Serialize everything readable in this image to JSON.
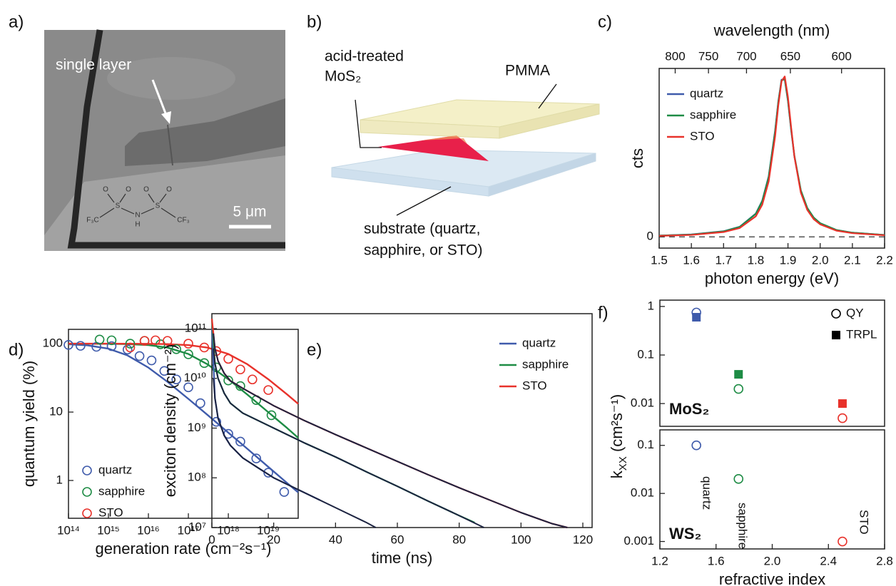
{
  "panel_labels": [
    "a)",
    "b)",
    "c)",
    "d)",
    "e)",
    "f)"
  ],
  "micrograph": {
    "annotation": "single layer",
    "scale_bar": "5 μm",
    "molecule_labels": [
      "O",
      "O",
      "O",
      "O",
      "S",
      "S",
      "N",
      "H",
      "F₃C",
      "CF₃"
    ]
  },
  "schematic": {
    "labels": [
      "acid-treated",
      "MoS₂",
      "PMMA",
      "substrate (quartz,",
      "sapphire, or STO)"
    ]
  },
  "chart_data": [
    {
      "type": "line",
      "x_label": "photon energy (eV)",
      "y_label": "cts",
      "x2_label": "wavelength (nm)",
      "xlim": [
        1.5,
        2.2
      ],
      "xticks": [
        1.5,
        1.6,
        1.7,
        1.8,
        1.9,
        {
          "value": 2,
          "label": "2.0"
        },
        2.1,
        2.2
      ],
      "x2ticks": [
        800,
        750,
        700,
        650,
        600
      ],
      "ylim": [
        -0.07,
        1.05
      ],
      "yticks": [
        0
      ],
      "zero_line": "dashed",
      "legend": "upper left",
      "x": [
        1.5,
        1.6,
        1.7,
        1.75,
        1.8,
        1.82,
        1.84,
        1.86,
        1.87,
        1.88,
        1.89,
        1.9,
        1.91,
        1.92,
        1.94,
        1.96,
        1.98,
        2.0,
        2.05,
        2.1,
        2.2
      ],
      "series": [
        {
          "name": "quartz",
          "color": "#3f5bab",
          "values": [
            0.008,
            0.015,
            0.035,
            0.063,
            0.145,
            0.225,
            0.377,
            0.662,
            0.845,
            0.98,
            0.98,
            0.845,
            0.662,
            0.5,
            0.288,
            0.179,
            0.119,
            0.085,
            0.043,
            0.026,
            0.012
          ]
        },
        {
          "name": "sapphire",
          "color": "#1e8c45",
          "values": [
            0.008,
            0.014,
            0.034,
            0.062,
            0.143,
            0.222,
            0.372,
            0.655,
            0.84,
            0.975,
            0.985,
            0.85,
            0.668,
            0.505,
            0.29,
            0.18,
            0.12,
            0.085,
            0.043,
            0.026,
            0.012
          ]
        },
        {
          "name": "STO",
          "color": "#e8322b",
          "values": [
            0.006,
            0.012,
            0.03,
            0.055,
            0.128,
            0.2,
            0.345,
            0.625,
            0.82,
            0.97,
            1.0,
            0.87,
            0.68,
            0.5,
            0.275,
            0.168,
            0.11,
            0.078,
            0.039,
            0.023,
            0.01
          ]
        }
      ]
    },
    {
      "type": "scatter",
      "x_label": "generation rate (cm⁻²s⁻¹)",
      "y_label": "quantum yield (%)",
      "xscale": "log",
      "yscale": "log",
      "xlim": [
        100000000000000.0,
        5.6e+19
      ],
      "ylim": [
        0.28,
        162
      ],
      "xticks": [
        {
          "value": 100000000000000.0,
          "label": "10¹⁴"
        },
        {
          "value": 1000000000000000.0,
          "label": "10¹⁵"
        },
        {
          "value": 1e+16,
          "label": "10¹⁶"
        },
        {
          "value": 1e+17,
          "label": "10¹⁷"
        },
        {
          "value": 1e+18,
          "label": "10¹⁸"
        },
        {
          "value": 1e+19,
          "label": "10¹⁹"
        }
      ],
      "yticks": [
        1,
        10,
        100
      ],
      "legend": "lower left",
      "marker": "circle-open",
      "series": [
        {
          "name": "quartz",
          "color": "#3f5bab",
          "x": [
            100000000000000.0,
            200000000000000.0,
            500000000000000.0,
            1200000000000000.0,
            3000000000000000.0,
            6000000000000000.0,
            1.2e+16,
            2.5e+16,
            5e+16,
            1e+17,
            2e+17,
            5e+17,
            1e+18,
            2e+18,
            5e+18,
            1e+19,
            2.5e+19
          ],
          "values": [
            96,
            93,
            90,
            92,
            82,
            66,
            57,
            40,
            30,
            23,
            13.5,
            7.2,
            4.8,
            3.7,
            2.1,
            1.3,
            0.68
          ]
        },
        {
          "name": "sapphire",
          "color": "#1e8c45",
          "x": [
            600000000000000.0,
            1200000000000000.0,
            3500000000000000.0,
            8000000000000000.0,
            2e+16,
            5e+16,
            1e+17,
            2.5e+17,
            5e+17,
            1e+18,
            2e+18,
            5e+18,
            1.2e+19
          ],
          "values": [
            115,
            112,
            100,
            110,
            98,
            83,
            70,
            52,
            45,
            29,
            24,
            15,
            9
          ]
        },
        {
          "name": "STO",
          "color": "#e8322b",
          "x": [
            3500000000000000.0,
            8000000000000000.0,
            1.5e+16,
            3e+16,
            1e+17,
            2.5e+17,
            5e+17,
            1e+18,
            2e+18,
            4e+18,
            1e+19
          ],
          "values": [
            88,
            110,
            112,
            110,
            100,
            88,
            78,
            60,
            42,
            30,
            21
          ]
        }
      ],
      "fits": [
        {
          "color": "#3f5bab",
          "x": [
            100000000000000.0,
            300000000000000.0,
            1000000000000000.0,
            3000000000000000.0,
            1e+16,
            3e+16,
            1e+17,
            3e+17,
            1e+18,
            3e+18,
            1e+19,
            3e+19,
            5.6e+19
          ],
          "values": [
            98,
            94.5,
            84.5,
            67.4,
            44.7,
            27.7,
            15.6,
            9.1,
            5.0,
            2.9,
            1.58,
            0.91,
            0.67
          ]
        },
        {
          "color": "#1e8c45",
          "x": [
            100000000000000.0,
            300000000000000.0,
            1000000000000000.0,
            3000000000000000.0,
            1e+16,
            3e+16,
            1e+17,
            3e+17,
            1e+18,
            3e+18,
            1e+19,
            3e+19,
            5.6e+19
          ],
          "values": [
            100,
            99.9,
            99.5,
            98.5,
            95.3,
            87.7,
            70.7,
            50,
            30.2,
            18,
            9.95,
            5.8,
            4.2
          ]
        },
        {
          "color": "#e8322b",
          "x": [
            100000000000000.0,
            300000000000000.0,
            1000000000000000.0,
            3000000000000000.0,
            1e+16,
            3e+16,
            1e+17,
            3e+17,
            1e+18,
            3e+18,
            1e+19,
            3e+19,
            5.6e+19
          ],
          "values": [
            100,
            100,
            100,
            99.8,
            99.5,
            98.5,
            95.3,
            87.7,
            70.7,
            50,
            30.2,
            18,
            13.2
          ]
        }
      ]
    },
    {
      "type": "line",
      "x_label": "time (ns)",
      "y_label": "exciton density (cm⁻²)",
      "yscale": "log",
      "xlim": [
        0,
        123
      ],
      "ylim": [
        10000000.0,
        200000000000.0
      ],
      "xticks": [
        0,
        20,
        40,
        60,
        80,
        100,
        120
      ],
      "yticks": [
        {
          "value": 10000000.0,
          "label": "10⁷"
        },
        {
          "value": 100000000.0,
          "label": "10⁸"
        },
        {
          "value": 1000000000.0,
          "label": "10⁹"
        },
        {
          "value": 10000000000.0,
          "label": "10¹⁰"
        },
        {
          "value": 100000000000.0,
          "label": "10¹¹"
        }
      ],
      "legend": "upper right",
      "series": [
        {
          "name": "quartz",
          "color": "#3f5bab",
          "x": [
            0,
            1,
            2,
            4,
            6,
            10,
            15,
            20,
            25,
            30,
            35
          ],
          "values": [
            100000000000.0,
            3980000000.0,
            1580000000.0,
            708000000.0,
            447000000.0,
            251000000.0,
            158000000.0,
            100000000.0,
            70800000.0,
            50100000.0,
            35500000.0
          ]
        },
        {
          "name": "sapphire",
          "color": "#1e8c45",
          "x": [
            0,
            1,
            2,
            4,
            6,
            10,
            20,
            30,
            40,
            50,
            60,
            70,
            80,
            85
          ],
          "values": [
            158000000000.0,
            20000000000.0,
            10000000000.0,
            5010000000.0,
            3160000000.0,
            2000000000.0,
            1000000000.0,
            501000000.0,
            263000000.0,
            132000000.0,
            67600000.0,
            33900000.0,
            17400000.0,
            12600000.0
          ]
        },
        {
          "name": "STO",
          "color": "#e8322b",
          "x": [
            0,
            1,
            2,
            4,
            6,
            10,
            20,
            30,
            40,
            50,
            60,
            70,
            80,
            90,
            100,
            110,
            115
          ],
          "values": [
            158000000000.0,
            39800000000.0,
            22400000000.0,
            12600000000.0,
            8910000000.0,
            6310000000.0,
            2820000000.0,
            1410000000.0,
            741000000.0,
            398000000.0,
            214000000.0,
            115000000.0,
            63100000.0,
            35500000.0,
            20000000.0,
            12000000.0,
            10000000.0
          ]
        }
      ],
      "fits": [
        {
          "color": "#1c2340",
          "x": [
            0.5,
            1,
            2,
            4,
            6,
            10,
            15,
            20,
            30,
            40,
            50,
            53
          ],
          "values": [
            10000000000.0,
            3980000000.0,
            1580000000.0,
            708000000.0,
            447000000.0,
            251000000.0,
            158000000.0,
            100000000.0,
            50100000.0,
            25100000.0,
            12600000.0,
            10000000.0
          ]
        },
        {
          "color": "#1c2340",
          "x": [
            0.5,
            1,
            2,
            4,
            6,
            10,
            20,
            30,
            40,
            50,
            60,
            70,
            80,
            88
          ],
          "values": [
            40000000000.0,
            20000000000.0,
            10000000000.0,
            5010000000.0,
            3160000000.0,
            2000000000.0,
            1000000000.0,
            501000000.0,
            263000000.0,
            132000000.0,
            67600000.0,
            33900000.0,
            17400000.0,
            10000000.0
          ]
        },
        {
          "color": "#1c2340",
          "x": [
            0.5,
            1,
            2,
            4,
            6,
            10,
            20,
            30,
            40,
            50,
            60,
            70,
            80,
            90,
            100,
            110,
            115
          ],
          "values": [
            80000000000.0,
            39800000000.0,
            22400000000.0,
            12600000000.0,
            8910000000.0,
            6310000000.0,
            2820000000.0,
            1410000000.0,
            741000000.0,
            398000000.0,
            214000000.0,
            115000000.0,
            63100000.0,
            35500000.0,
            20000000.0,
            12000000.0,
            10000000.0
          ]
        }
      ]
    },
    {
      "type": "scatter",
      "y_label": [
        "k",
        "XX",
        " (cm²s⁻¹)"
      ],
      "yscale": "log",
      "xlim": [
        1.2,
        2.8
      ],
      "ylim": [
        0.0034,
        1.35
      ],
      "yticks": [
        0.01,
        0.1,
        1
      ],
      "legend": "upper right",
      "annotations": [
        "MoS₂"
      ],
      "series": [
        {
          "name": "QY",
          "color": "#000000",
          "marker": "circle-open",
          "point_colors": [
            "#3f5bab",
            "#1e8c45",
            "#e8322b"
          ],
          "x": [
            1.46,
            1.76,
            2.5
          ],
          "values": [
            0.75,
            0.02,
            0.005
          ]
        },
        {
          "name": "TRPL",
          "color": "#000000",
          "marker": "square",
          "point_colors": [
            "#3f5bab",
            "#1e8c45",
            "#e8322b"
          ],
          "x": [
            1.46,
            1.76,
            2.5
          ],
          "values": [
            0.6,
            0.04,
            0.01
          ]
        }
      ]
    },
    {
      "type": "scatter",
      "x_label": "refractive index",
      "yscale": "log",
      "xlim": [
        1.2,
        2.8
      ],
      "ylim": [
        0.0007,
        0.21
      ],
      "xticks": [
        1.2,
        1.6,
        {
          "value": 2,
          "label": "2.0"
        },
        2.4,
        2.8
      ],
      "yticks": [
        0.001,
        0.01,
        0.1
      ],
      "annotations": [
        "WS₂",
        "quartz",
        "sapphire",
        "STO"
      ],
      "series": [
        {
          "color": "#000000",
          "marker": "circle-open",
          "point_colors": [
            "#3f5bab",
            "#1e8c45",
            "#e8322b"
          ],
          "x": [
            1.46,
            1.76,
            2.5
          ],
          "values": [
            0.1,
            0.02,
            0.001
          ]
        }
      ]
    }
  ]
}
